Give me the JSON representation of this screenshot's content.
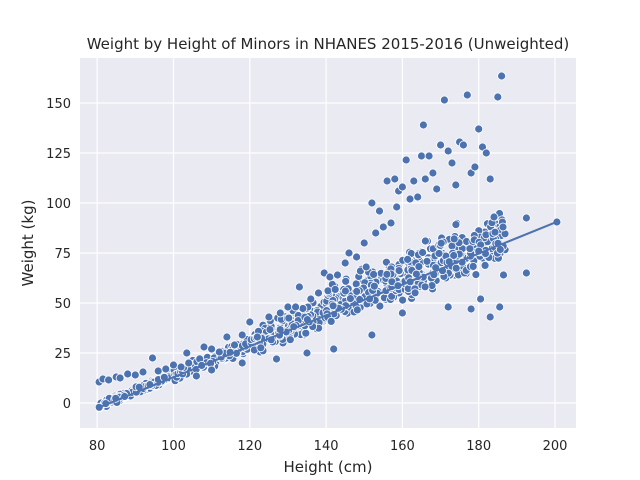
{
  "chart_data": {
    "type": "scatter",
    "title": "Weight by Height of Minors in NHANES 2015-2016 (Unweighted)",
    "xlabel": "Height (cm)",
    "ylabel": "Weight (kg)",
    "xlim": [
      75.5,
      205.5
    ],
    "ylim": [
      -12.5,
      172.5
    ],
    "xticks": [
      80,
      100,
      120,
      140,
      160,
      180,
      200
    ],
    "yticks": [
      0,
      25,
      50,
      75,
      100,
      125,
      150
    ],
    "grid": true,
    "background": "#eaeaf2",
    "point_color": "#4c72b0",
    "point_edge_color": "#ffffff",
    "line_color": "#4c72b0",
    "fit_line": {
      "x": [
        80.5,
        200.5
      ],
      "y": [
        -2.2,
        90.6
      ]
    },
    "trend": {
      "x_min": 80.5,
      "x_max": 187,
      "slope": 0.773,
      "intercept": -64.4
    },
    "spread_segments": [
      {
        "x": [
          80.5,
          100
        ],
        "lo": -1.6,
        "hi": 3.2
      },
      {
        "x": [
          100,
          120
        ],
        "lo": -3.5,
        "hi": 5.5
      },
      {
        "x": [
          120,
          140
        ],
        "lo": -7.5,
        "hi": 11
      },
      {
        "x": [
          140,
          160
        ],
        "lo": -12,
        "hi": 18
      },
      {
        "x": [
          160,
          187
        ],
        "lo": -16,
        "hi": 22
      }
    ],
    "points": [
      {
        "x": 80.5,
        "y": 10.5
      },
      {
        "x": 81.5,
        "y": 12
      },
      {
        "x": 83,
        "y": 11.5
      },
      {
        "x": 85,
        "y": 13
      },
      {
        "x": 86,
        "y": 12.5
      },
      {
        "x": 88,
        "y": 14.5
      },
      {
        "x": 90,
        "y": 14
      },
      {
        "x": 92,
        "y": 15.5
      },
      {
        "x": 94.5,
        "y": 22.5
      },
      {
        "x": 96,
        "y": 16
      },
      {
        "x": 98,
        "y": 17
      },
      {
        "x": 100,
        "y": 19
      },
      {
        "x": 102,
        "y": 18
      },
      {
        "x": 103.5,
        "y": 25
      },
      {
        "x": 104,
        "y": 20
      },
      {
        "x": 106,
        "y": 13.5
      },
      {
        "x": 108,
        "y": 28
      },
      {
        "x": 110,
        "y": 27
      },
      {
        "x": 112,
        "y": 25.5
      },
      {
        "x": 114,
        "y": 33
      },
      {
        "x": 116,
        "y": 29
      },
      {
        "x": 118,
        "y": 34
      },
      {
        "x": 120,
        "y": 40.5
      },
      {
        "x": 122,
        "y": 33
      },
      {
        "x": 125,
        "y": 43
      },
      {
        "x": 128,
        "y": 45
      },
      {
        "x": 130,
        "y": 48
      },
      {
        "x": 132,
        "y": 48
      },
      {
        "x": 133,
        "y": 58
      },
      {
        "x": 136,
        "y": 52
      },
      {
        "x": 138,
        "y": 55
      },
      {
        "x": 139.5,
        "y": 65
      },
      {
        "x": 141,
        "y": 63
      },
      {
        "x": 143,
        "y": 64
      },
      {
        "x": 145,
        "y": 70
      },
      {
        "x": 146,
        "y": 75
      },
      {
        "x": 148,
        "y": 73
      },
      {
        "x": 149,
        "y": 66
      },
      {
        "x": 150,
        "y": 80
      },
      {
        "x": 150.5,
        "y": 68
      },
      {
        "x": 152,
        "y": 100
      },
      {
        "x": 153,
        "y": 85
      },
      {
        "x": 154,
        "y": 96
      },
      {
        "x": 155,
        "y": 88
      },
      {
        "x": 156,
        "y": 111
      },
      {
        "x": 157,
        "y": 90
      },
      {
        "x": 158,
        "y": 112
      },
      {
        "x": 158.5,
        "y": 98
      },
      {
        "x": 159,
        "y": 106
      },
      {
        "x": 160,
        "y": 108
      },
      {
        "x": 161,
        "y": 121.5
      },
      {
        "x": 162,
        "y": 102
      },
      {
        "x": 163,
        "y": 111
      },
      {
        "x": 164,
        "y": 103
      },
      {
        "x": 165,
        "y": 123.5
      },
      {
        "x": 165.5,
        "y": 139
      },
      {
        "x": 166,
        "y": 112
      },
      {
        "x": 167,
        "y": 123.5
      },
      {
        "x": 168,
        "y": 115
      },
      {
        "x": 169,
        "y": 107
      },
      {
        "x": 170,
        "y": 129
      },
      {
        "x": 171,
        "y": 151.5
      },
      {
        "x": 172,
        "y": 126
      },
      {
        "x": 173,
        "y": 120
      },
      {
        "x": 174,
        "y": 109
      },
      {
        "x": 175,
        "y": 130.5
      },
      {
        "x": 176,
        "y": 129
      },
      {
        "x": 177,
        "y": 154
      },
      {
        "x": 178,
        "y": 115
      },
      {
        "x": 179,
        "y": 118
      },
      {
        "x": 180,
        "y": 137
      },
      {
        "x": 181,
        "y": 128
      },
      {
        "x": 182,
        "y": 125
      },
      {
        "x": 183,
        "y": 112
      },
      {
        "x": 184,
        "y": 93
      },
      {
        "x": 185,
        "y": 153
      },
      {
        "x": 186,
        "y": 163.5
      },
      {
        "x": 186.5,
        "y": 64
      },
      {
        "x": 185.5,
        "y": 48
      },
      {
        "x": 183,
        "y": 43
      },
      {
        "x": 180.5,
        "y": 52
      },
      {
        "x": 178,
        "y": 47
      },
      {
        "x": 172,
        "y": 48
      },
      {
        "x": 160,
        "y": 45
      },
      {
        "x": 152,
        "y": 34
      },
      {
        "x": 142,
        "y": 27
      },
      {
        "x": 135,
        "y": 25
      },
      {
        "x": 127,
        "y": 22
      },
      {
        "x": 118,
        "y": 20
      },
      {
        "x": 110,
        "y": 16.5
      },
      {
        "x": 192.5,
        "y": 65
      },
      {
        "x": 192.5,
        "y": 92.5
      },
      {
        "x": 200.5,
        "y": 90.5
      }
    ]
  }
}
